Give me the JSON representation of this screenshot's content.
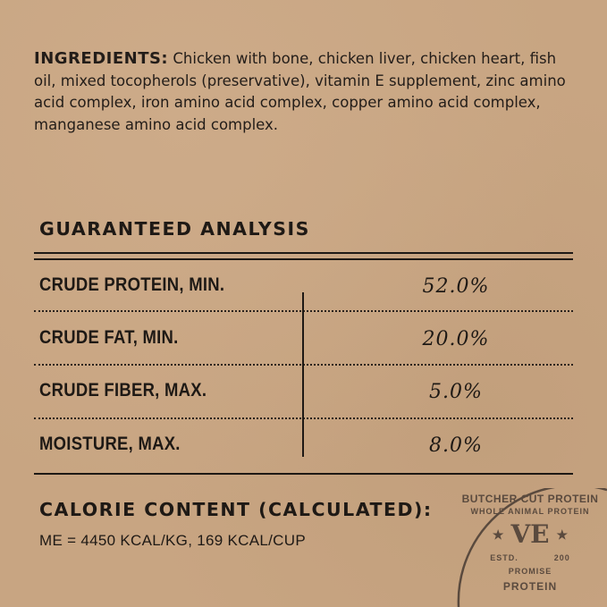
{
  "ingredients": {
    "heading": "INGREDIENTS:",
    "text": " Chicken with bone, chicken liver, chicken heart, fish oil, mixed tocopherols (preservative), vitamin E supplement, zinc amino acid complex, iron amino acid complex, copper amino acid complex, manganese amino acid complex."
  },
  "analysis": {
    "heading": "GUARANTEED ANALYSIS",
    "rows": [
      {
        "label": "CRUDE PROTEIN, MIN.",
        "value": "52.0%"
      },
      {
        "label": "CRUDE FAT, MIN.",
        "value": "20.0%"
      },
      {
        "label": "CRUDE FIBER, MAX.",
        "value": "5.0%"
      },
      {
        "label": "MOISTURE, MAX.",
        "value": "8.0%"
      }
    ]
  },
  "calorie": {
    "heading": "CALORIE CONTENT (CALCULATED):",
    "text": "ME = 4450 KCAL/KG, 169 KCAL/CUP"
  },
  "seal": {
    "outer": "BUTCHER CUT PROTEIN",
    "inner": "WHOLE ANIMAL PROTEIN",
    "monogram": "VE",
    "estd": "ESTD.",
    "year": "200",
    "promise": "PROMISE",
    "right": "PROTEIN"
  },
  "colors": {
    "background": "#c8a582",
    "ink": "#1e1915",
    "seal": "#5a4a3e"
  }
}
